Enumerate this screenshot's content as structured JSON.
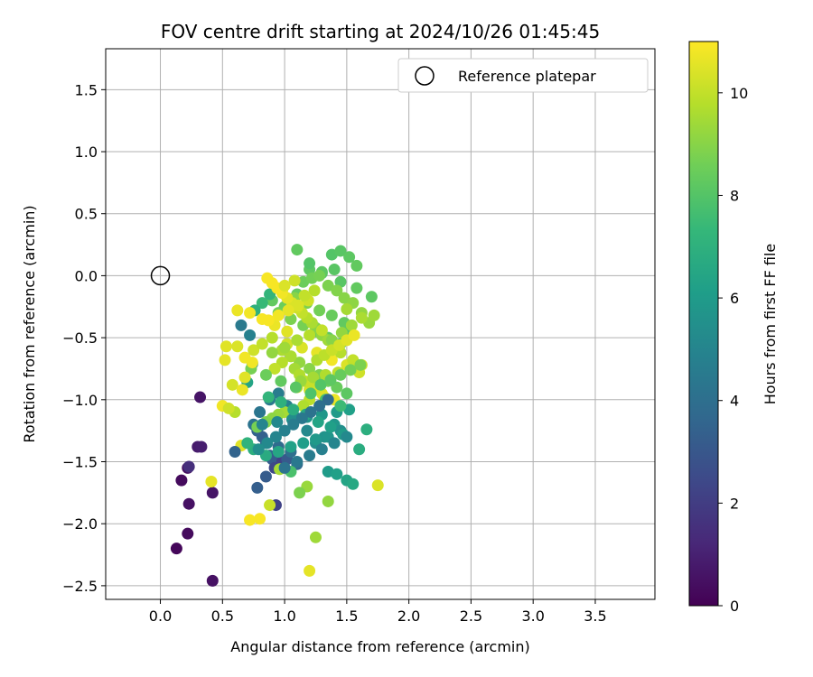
{
  "chart_data": {
    "type": "scatter",
    "title": "FOV centre drift starting at 2024/10/26 01:45:45",
    "xlabel": "Angular distance from reference (arcmin)",
    "ylabel": "Rotation from reference (arcmin)",
    "xlim": [
      -0.44,
      3.98
    ],
    "ylim": [
      -2.61,
      1.83
    ],
    "xticks": [
      "0.0",
      "0.5",
      "1.0",
      "1.5",
      "2.0",
      "2.5",
      "3.0",
      "3.5"
    ],
    "yticks": [
      "−2.5",
      "−2.0",
      "−1.5",
      "−1.0",
      "−0.5",
      "0.0",
      "0.5",
      "1.0",
      "1.5"
    ],
    "grid": true,
    "legend": {
      "placement": "top-right",
      "entries": [
        "Reference platepar"
      ]
    },
    "reference_point": {
      "x": 0.0,
      "y": 0.0,
      "style": "open circle"
    },
    "colorbar": {
      "label": "Hours from first FF file",
      "range": [
        0,
        11
      ],
      "ticks": [
        "0",
        "2",
        "4",
        "6",
        "8",
        "10"
      ],
      "colormap": "viridis",
      "colors": [
        "#440154",
        "#482878",
        "#3e4989",
        "#31688e",
        "#26828e",
        "#1f9e89",
        "#35b779",
        "#6ece58",
        "#b5de2b",
        "#fde725"
      ]
    },
    "series": [
      {
        "color_by": "hours",
        "x": [
          0.13,
          0.17,
          0.22,
          0.22,
          0.23,
          0.32,
          0.3,
          0.33,
          0.42,
          0.42,
          0.41,
          0.23,
          0.5,
          0.53,
          0.62,
          0.65,
          0.72,
          0.74,
          0.7,
          0.78,
          0.82,
          0.88,
          0.9,
          0.93,
          0.78,
          0.85,
          0.92,
          0.98,
          1.02,
          1.1,
          0.85,
          0.95,
          1.05,
          0.75,
          0.8,
          0.88,
          0.95,
          1.02,
          1.1,
          1.18,
          1.25,
          1.32,
          1.4,
          1.35,
          1.42,
          1.5,
          1.55,
          1.6,
          1.66,
          1.7,
          1.58,
          1.45,
          1.3,
          1.2,
          1.1,
          1.0,
          0.9,
          0.95,
          1.05,
          1.15,
          1.25,
          1.35,
          1.45,
          1.52,
          1.48,
          1.38,
          1.28,
          1.18,
          1.08,
          0.98,
          0.88,
          0.82,
          0.76,
          1.38,
          1.45,
          1.52,
          1.58,
          1.4,
          1.3,
          1.2,
          1.1,
          1.15,
          1.22,
          1.28,
          1.35,
          1.42,
          1.48,
          1.55,
          1.62,
          1.68,
          1.72,
          1.5,
          1.35,
          1.25,
          1.2,
          1.18,
          1.12,
          1.05,
          0.96,
          0.88,
          0.8,
          0.72,
          0.65,
          0.6,
          0.55,
          0.52,
          0.62,
          0.68,
          0.75,
          0.82,
          0.9,
          0.98,
          1.05,
          1.12,
          1.2,
          1.28,
          1.35,
          1.42,
          1.5,
          1.75,
          1.2,
          1.15,
          1.0,
          0.95,
          0.9,
          0.85,
          0.78,
          1.1,
          1.2,
          1.3,
          1.4,
          1.08,
          1.12,
          1.16,
          1.22,
          1.28,
          1.32,
          1.05,
          0.98,
          0.92,
          1.02,
          1.14,
          1.26,
          1.38,
          1.5,
          1.6,
          1.45,
          1.35,
          1.25,
          1.15,
          1.05,
          0.95,
          0.85,
          0.75,
          0.7,
          0.82,
          0.94,
          1.06,
          1.18,
          1.3,
          1.42,
          1.52,
          1.25,
          1.3,
          1.35,
          1.4,
          1.45,
          1.55,
          1.62,
          1.47,
          1.37,
          1.27,
          1.17,
          1.07,
          0.97,
          0.87,
          1.13,
          1.23,
          1.33,
          1.43,
          1.53,
          1.02,
          0.92,
          0.82,
          0.72,
          1.0,
          1.1,
          1.2,
          1.3,
          1.4,
          1.5,
          1.45,
          1.33,
          1.21,
          1.09,
          0.97,
          0.85,
          0.73,
          0.9,
          1.0,
          1.1,
          1.2,
          1.3,
          1.22,
          1.18,
          1.14,
          1.1,
          1.06,
          1.02,
          0.98,
          0.94,
          0.9,
          0.86,
          1.38,
          1.46,
          1.54,
          1.62,
          1.35,
          1.28,
          1.21,
          1.14,
          1.07,
          1.0,
          0.93,
          0.86,
          0.79,
          1.26,
          1.32,
          1.38,
          1.44,
          1.5,
          1.56,
          1.19,
          1.11,
          1.03,
          0.95,
          0.87,
          1.24,
          1.16,
          1.08,
          1.0,
          1.29,
          1.37,
          1.45,
          1.53,
          1.61,
          0.6,
          0.58,
          0.66,
          0.74,
          0.68
        ],
        "y": [
          -2.2,
          -1.65,
          -1.55,
          -2.08,
          -1.84,
          -0.98,
          -1.38,
          -1.38,
          -2.46,
          -1.75,
          -1.66,
          -1.54,
          -1.05,
          -0.57,
          -0.28,
          -0.4,
          -0.48,
          -0.71,
          -0.86,
          -1.25,
          -1.3,
          -1.45,
          -1.48,
          -1.85,
          -1.71,
          -1.62,
          -1.55,
          -1.5,
          -1.48,
          -1.52,
          -1.35,
          -1.38,
          -1.42,
          -1.2,
          -1.1,
          -1.0,
          -0.95,
          -1.05,
          -1.15,
          -1.25,
          -1.35,
          -1.3,
          -1.2,
          -1.58,
          -1.6,
          -1.65,
          -1.68,
          -1.4,
          -1.24,
          -0.17,
          -0.1,
          -0.05,
          0.02,
          0.05,
          -0.15,
          -0.25,
          -0.2,
          -0.3,
          -0.35,
          -0.4,
          -0.45,
          -0.5,
          -0.55,
          -0.45,
          -0.38,
          -0.32,
          -0.28,
          -0.22,
          -0.18,
          -0.12,
          -0.15,
          -0.22,
          -0.28,
          0.17,
          0.2,
          0.15,
          0.08,
          0.05,
          0.03,
          0.1,
          0.21,
          -0.05,
          -0.02,
          0.0,
          -0.08,
          -0.12,
          -0.18,
          -0.22,
          -0.3,
          -0.38,
          -0.32,
          -0.27,
          -1.82,
          -2.11,
          -2.38,
          -1.7,
          -1.75,
          -1.58,
          -1.56,
          -1.85,
          -1.96,
          -1.97,
          -1.37,
          -1.1,
          -1.07,
          -0.68,
          -0.57,
          -0.66,
          -0.6,
          -0.55,
          -0.5,
          -0.6,
          -0.65,
          -0.7,
          -0.75,
          -0.8,
          -0.85,
          -0.9,
          -0.95,
          -1.69,
          -1.0,
          -1.05,
          -1.1,
          -1.12,
          -1.15,
          -1.18,
          -1.22,
          -0.9,
          -0.92,
          -0.95,
          -1.0,
          -0.75,
          -0.8,
          -0.85,
          -0.88,
          -0.92,
          -0.98,
          -0.65,
          -0.7,
          -0.75,
          -0.55,
          -0.58,
          -0.62,
          -0.68,
          -0.72,
          -0.78,
          -1.25,
          -1.3,
          -1.32,
          -1.35,
          -1.38,
          -1.42,
          -1.45,
          -1.4,
          -1.35,
          -1.2,
          -1.18,
          -1.16,
          -1.14,
          -1.12,
          -1.1,
          -1.08,
          -0.42,
          -0.48,
          -0.52,
          -0.58,
          -0.62,
          -0.68,
          -0.72,
          -1.28,
          -1.22,
          -1.18,
          -1.12,
          -1.08,
          -1.02,
          -0.98,
          -0.85,
          -0.82,
          -0.8,
          -0.78,
          -0.76,
          -0.45,
          -0.4,
          -0.35,
          -0.3,
          -1.55,
          -1.5,
          -1.45,
          -1.4,
          -1.35,
          -1.3,
          -1.05,
          -1.0,
          -0.95,
          -0.9,
          -0.85,
          -0.8,
          -0.75,
          -0.62,
          -0.58,
          -0.52,
          -0.48,
          -0.44,
          -0.38,
          -0.34,
          -0.3,
          -0.26,
          -0.22,
          -0.18,
          -0.14,
          -0.1,
          -0.06,
          -0.02,
          -0.52,
          -0.46,
          -0.4,
          -0.34,
          -1.0,
          -1.05,
          -1.1,
          -1.15,
          -1.2,
          -1.25,
          -1.3,
          -1.35,
          -1.4,
          -0.68,
          -0.64,
          -0.6,
          -0.56,
          -0.52,
          -0.48,
          -0.2,
          -0.24,
          -0.28,
          -0.32,
          -0.36,
          -0.12,
          -0.16,
          -0.04,
          -0.08,
          -0.88,
          -0.84,
          -0.8,
          -0.76,
          -0.72,
          -1.42,
          -0.88,
          -0.92,
          -0.7,
          -0.82
        ],
        "hours": [
          0.2,
          0.3,
          0.4,
          0.3,
          0.5,
          0.6,
          0.8,
          0.9,
          0.5,
          0.6,
          10.6,
          1.5,
          10.8,
          10.5,
          10.7,
          4.5,
          4.8,
          5.0,
          6.4,
          3.5,
          3.4,
          3.6,
          3.2,
          2.2,
          3.3,
          3.2,
          2.4,
          2.2,
          3.1,
          3.7,
          3.6,
          3.8,
          4.0,
          4.2,
          4.3,
          4.4,
          4.6,
          4.8,
          5.0,
          5.2,
          5.4,
          5.6,
          5.8,
          6.0,
          6.2,
          6.4,
          6.6,
          6.8,
          6.9,
          8.2,
          8.3,
          8.1,
          8.0,
          8.2,
          8.4,
          8.5,
          8.3,
          8.6,
          8.8,
          8.7,
          8.5,
          8.2,
          8.0,
          8.1,
          8.3,
          8.4,
          8.6,
          8.8,
          9.0,
          9.2,
          7.2,
          7.4,
          7.0,
          8.0,
          8.1,
          8.2,
          8.3,
          8.1,
          8.2,
          8.0,
          8.3,
          8.5,
          8.6,
          8.7,
          8.8,
          8.9,
          9.0,
          9.1,
          9.2,
          9.3,
          9.4,
          9.5,
          9.2,
          9.4,
          10.6,
          9.3,
          8.8,
          7.8,
          9.5,
          10.1,
          10.9,
          10.9,
          10.5,
          9.8,
          10.2,
          10.6,
          10.4,
          10.8,
          10.2,
          10.0,
          9.8,
          9.6,
          9.4,
          9.2,
          9.0,
          8.8,
          8.6,
          8.4,
          8.2,
          10.4,
          9.9,
          9.7,
          9.5,
          9.3,
          9.1,
          8.9,
          8.7,
          10.1,
          10.3,
          10.5,
          10.7,
          9.5,
          9.7,
          9.9,
          10.1,
          10.3,
          10.5,
          9.6,
          9.8,
          10.0,
          10.2,
          10.4,
          10.6,
          10.8,
          10.4,
          10.2,
          5.5,
          5.7,
          5.9,
          6.1,
          6.3,
          6.5,
          6.7,
          6.9,
          7.1,
          5.0,
          5.2,
          5.4,
          5.6,
          5.8,
          6.0,
          6.2,
          9.0,
          9.2,
          9.4,
          9.6,
          9.8,
          10.0,
          10.2,
          6.0,
          6.2,
          6.4,
          6.6,
          6.8,
          7.0,
          7.2,
          9.3,
          9.5,
          9.7,
          9.9,
          10.1,
          10.5,
          10.7,
          10.9,
          10.8,
          4.2,
          4.4,
          4.6,
          4.8,
          5.0,
          5.2,
          7.5,
          7.7,
          7.9,
          8.1,
          8.3,
          8.5,
          8.7,
          9.2,
          9.4,
          9.6,
          9.8,
          10.0,
          9.6,
          9.8,
          10.0,
          10.2,
          10.4,
          10.6,
          10.8,
          10.9,
          10.9,
          10.9,
          9.0,
          9.2,
          9.4,
          9.6,
          3.8,
          4.0,
          4.2,
          4.4,
          4.6,
          4.8,
          5.0,
          5.2,
          5.4,
          9.7,
          9.9,
          10.1,
          10.3,
          10.5,
          10.7,
          10.2,
          10.4,
          10.6,
          10.8,
          10.9,
          9.8,
          10.0,
          10.2,
          10.4,
          8.0,
          8.2,
          8.4,
          8.6,
          8.8,
          3.5,
          10.3,
          10.7,
          10.8,
          10.5
        ]
      }
    ]
  }
}
